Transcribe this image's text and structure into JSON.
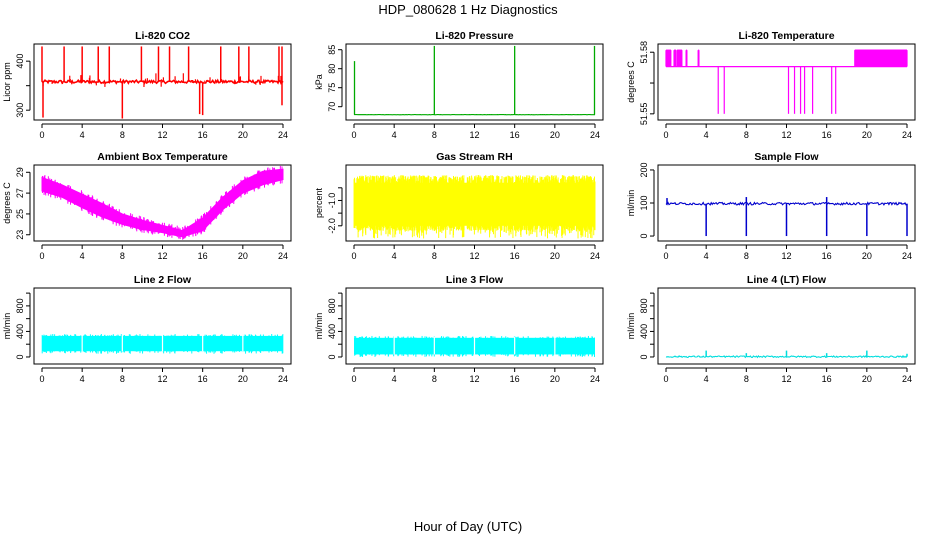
{
  "page": {
    "title": "HDP_080628  1 Hz Diagnostics",
    "footer_xlabel": "Hour of Day (UTC)"
  },
  "chart_data": [
    {
      "id": "co2",
      "type": "line",
      "title": "Li-820 CO2",
      "ylabel": "Licor ppm",
      "xlabel": "",
      "color": "#ff0000",
      "xlim": [
        0,
        24
      ],
      "ylim": [
        280,
        435
      ],
      "xticks": [
        0,
        4,
        8,
        12,
        16,
        20,
        24
      ],
      "yticks": [
        300,
        350,
        400
      ],
      "xtick_labels": [
        "0",
        "4",
        "8",
        "12",
        "16",
        "20",
        "24"
      ],
      "ytick_labels": [
        "300",
        "",
        "400"
      ],
      "baseline": 358,
      "spikes_up": [
        [
          0.0,
          430
        ],
        [
          2.2,
          430
        ],
        [
          4.0,
          430
        ],
        [
          5.6,
          430
        ],
        [
          6.7,
          430
        ],
        [
          9.9,
          430
        ],
        [
          11.6,
          430
        ],
        [
          12.7,
          430
        ],
        [
          14.6,
          430
        ],
        [
          17.8,
          430
        ],
        [
          19.6,
          430
        ],
        [
          20.6,
          430
        ],
        [
          23.6,
          430
        ],
        [
          23.9,
          430
        ]
      ],
      "spikes_down": [
        [
          0.1,
          285
        ],
        [
          8.0,
          283
        ],
        [
          15.7,
          292
        ],
        [
          16.0,
          290
        ],
        [
          23.9,
          310
        ]
      ]
    },
    {
      "id": "pressure",
      "type": "line",
      "title": "Li-820 Pressure",
      "ylabel": "kPa",
      "xlabel": "",
      "color": "#00aa00",
      "xlim": [
        0,
        24
      ],
      "ylim": [
        66.5,
        86.5
      ],
      "xticks": [
        0,
        4,
        8,
        12,
        16,
        20,
        24
      ],
      "yticks": [
        70,
        75,
        80,
        85
      ],
      "xtick_labels": [
        "0",
        "4",
        "8",
        "12",
        "16",
        "20",
        "24"
      ],
      "ytick_labels": [
        "70",
        "75",
        "80",
        "85"
      ],
      "baseline": 67.9,
      "spikes_up": [
        [
          0.05,
          82
        ],
        [
          8.0,
          86
        ],
        [
          16.0,
          86
        ],
        [
          23.95,
          86
        ]
      ]
    },
    {
      "id": "licor-temp",
      "type": "line",
      "title": "Li-820 Temperature",
      "ylabel": "degrees C",
      "xlabel": "",
      "color": "#ff00ff",
      "xlim": [
        0,
        24
      ],
      "ylim": [
        51.547,
        51.584
      ],
      "xticks": [
        0,
        4,
        8,
        12,
        16,
        20,
        24
      ],
      "yticks": [
        51.55,
        51.565,
        51.58
      ],
      "xtick_labels": [
        "0",
        "4",
        "8",
        "12",
        "16",
        "20",
        "24"
      ],
      "ytick_labels": [
        "51.55",
        "",
        "51.58"
      ],
      "baseline": 51.573,
      "high_level": 51.581,
      "low_level": 51.55,
      "high_ranges": [
        [
          0.0,
          0.5
        ],
        [
          0.8,
          1.0
        ],
        [
          1.1,
          1.6
        ],
        [
          2.0,
          2.1
        ],
        [
          3.2,
          3.3
        ],
        [
          18.8,
          24.0
        ]
      ],
      "low_spikes": [
        5.2,
        5.8,
        12.2,
        12.8,
        13.4,
        13.8,
        14.6,
        16.5,
        16.9
      ]
    },
    {
      "id": "ambient",
      "type": "area",
      "title": "Ambient Box Temperature",
      "ylabel": "degrees C",
      "xlabel": "",
      "color": "#ff00ff",
      "xlim": [
        0,
        24
      ],
      "ylim": [
        22.4,
        29.7
      ],
      "xticks": [
        0,
        4,
        8,
        12,
        16,
        20,
        24
      ],
      "yticks": [
        23,
        25,
        27,
        29
      ],
      "xtick_labels": [
        "0",
        "4",
        "8",
        "12",
        "16",
        "20",
        "24"
      ],
      "ytick_labels": [
        "23",
        "25",
        "27",
        "29"
      ],
      "x": [
        0,
        2,
        4,
        6,
        8,
        10,
        12,
        14,
        16,
        18,
        20,
        22,
        24
      ],
      "upper": [
        28.5,
        27.8,
        26.9,
        26.0,
        25.0,
        24.4,
        23.9,
        23.4,
        24.6,
        26.6,
        28.2,
        29.1,
        29.3
      ],
      "lower": [
        27.2,
        26.6,
        25.6,
        24.7,
        24.0,
        23.5,
        23.2,
        22.8,
        23.4,
        25.4,
        27.0,
        27.8,
        28.3
      ]
    },
    {
      "id": "rh",
      "type": "area",
      "title": "Gas Stream RH",
      "ylabel": "percent",
      "xlabel": "",
      "color": "#ffff00",
      "xlim": [
        0,
        24
      ],
      "ylim": [
        -2.6,
        0.4
      ],
      "xticks": [
        0,
        4,
        8,
        12,
        16,
        20,
        24
      ],
      "yticks": [
        -2.0,
        -1.5,
        -1.0,
        -0.5
      ],
      "xtick_labels": [
        "0",
        "4",
        "8",
        "12",
        "16",
        "20",
        "24"
      ],
      "ytick_labels": [
        "-2.0",
        "",
        "-1.0",
        ""
      ],
      "band_top": -0.3,
      "band_bottom": -2.0,
      "noise_min": -2.5,
      "noise_max": 0.0
    },
    {
      "id": "sample-flow",
      "type": "line",
      "title": "Sample Flow",
      "ylabel": "ml/min",
      "xlabel": "",
      "color": "#0000cc",
      "xlim": [
        0,
        24
      ],
      "ylim": [
        -15,
        215
      ],
      "xticks": [
        0,
        4,
        8,
        12,
        16,
        20,
        24
      ],
      "yticks": [
        0,
        100,
        200
      ],
      "xtick_labels": [
        "0",
        "4",
        "8",
        "12",
        "16",
        "20",
        "24"
      ],
      "ytick_labels": [
        "0",
        "100",
        "200"
      ],
      "baseline": 98,
      "spikes_up": [
        [
          0.1,
          115
        ],
        [
          8.0,
          118
        ],
        [
          16.0,
          118
        ]
      ],
      "spikes_down": [
        [
          4.0,
          0
        ],
        [
          8.0,
          0
        ],
        [
          12.0,
          0
        ],
        [
          16.0,
          0
        ],
        [
          20.0,
          0
        ],
        [
          24.0,
          0
        ]
      ]
    },
    {
      "id": "line2",
      "type": "area",
      "title": "Line 2 Flow",
      "ylabel": "ml/min",
      "xlabel": "",
      "color": "#00ffff",
      "xlim": [
        0,
        24
      ],
      "ylim": [
        -110,
        1080
      ],
      "xticks": [
        0,
        4,
        8,
        12,
        16,
        20,
        24
      ],
      "yticks": [
        0,
        200,
        400,
        600,
        800,
        1000
      ],
      "xtick_labels": [
        "0",
        "4",
        "8",
        "12",
        "16",
        "20",
        "24"
      ],
      "ytick_labels": [
        "0",
        "",
        "400",
        "",
        "800",
        ""
      ],
      "band_top": 330,
      "band_bottom": 90,
      "gaps": [
        4,
        8,
        12,
        16,
        20
      ]
    },
    {
      "id": "line3",
      "type": "area",
      "title": "Line 3 Flow",
      "ylabel": "ml/min",
      "xlabel": "",
      "color": "#00ffff",
      "xlim": [
        0,
        24
      ],
      "ylim": [
        -110,
        1080
      ],
      "xticks": [
        0,
        4,
        8,
        12,
        16,
        20,
        24
      ],
      "yticks": [
        0,
        200,
        400,
        600,
        800,
        1000
      ],
      "xtick_labels": [
        "0",
        "4",
        "8",
        "12",
        "16",
        "20",
        "24"
      ],
      "ytick_labels": [
        "0",
        "",
        "400",
        "",
        "800",
        ""
      ],
      "band_top": 300,
      "band_bottom": 40,
      "gaps": [
        4,
        8,
        12,
        16,
        20
      ]
    },
    {
      "id": "line4",
      "type": "line",
      "title": "Line 4 (LT) Flow",
      "ylabel": "ml/min",
      "xlabel": "",
      "color": "#00dddd",
      "xlim": [
        0,
        24
      ],
      "ylim": [
        -110,
        1080
      ],
      "xticks": [
        0,
        4,
        8,
        12,
        16,
        20,
        24
      ],
      "yticks": [
        0,
        200,
        400,
        600,
        800,
        1000
      ],
      "xtick_labels": [
        "0",
        "4",
        "8",
        "12",
        "16",
        "20",
        "24"
      ],
      "ytick_labels": [
        "0",
        "",
        "400",
        "",
        "800",
        ""
      ],
      "baseline": 5,
      "spikes_up": [
        [
          4.0,
          100
        ],
        [
          8.0,
          60
        ],
        [
          12.0,
          100
        ],
        [
          16.0,
          60
        ],
        [
          20.0,
          100
        ],
        [
          24.0,
          50
        ]
      ]
    }
  ]
}
